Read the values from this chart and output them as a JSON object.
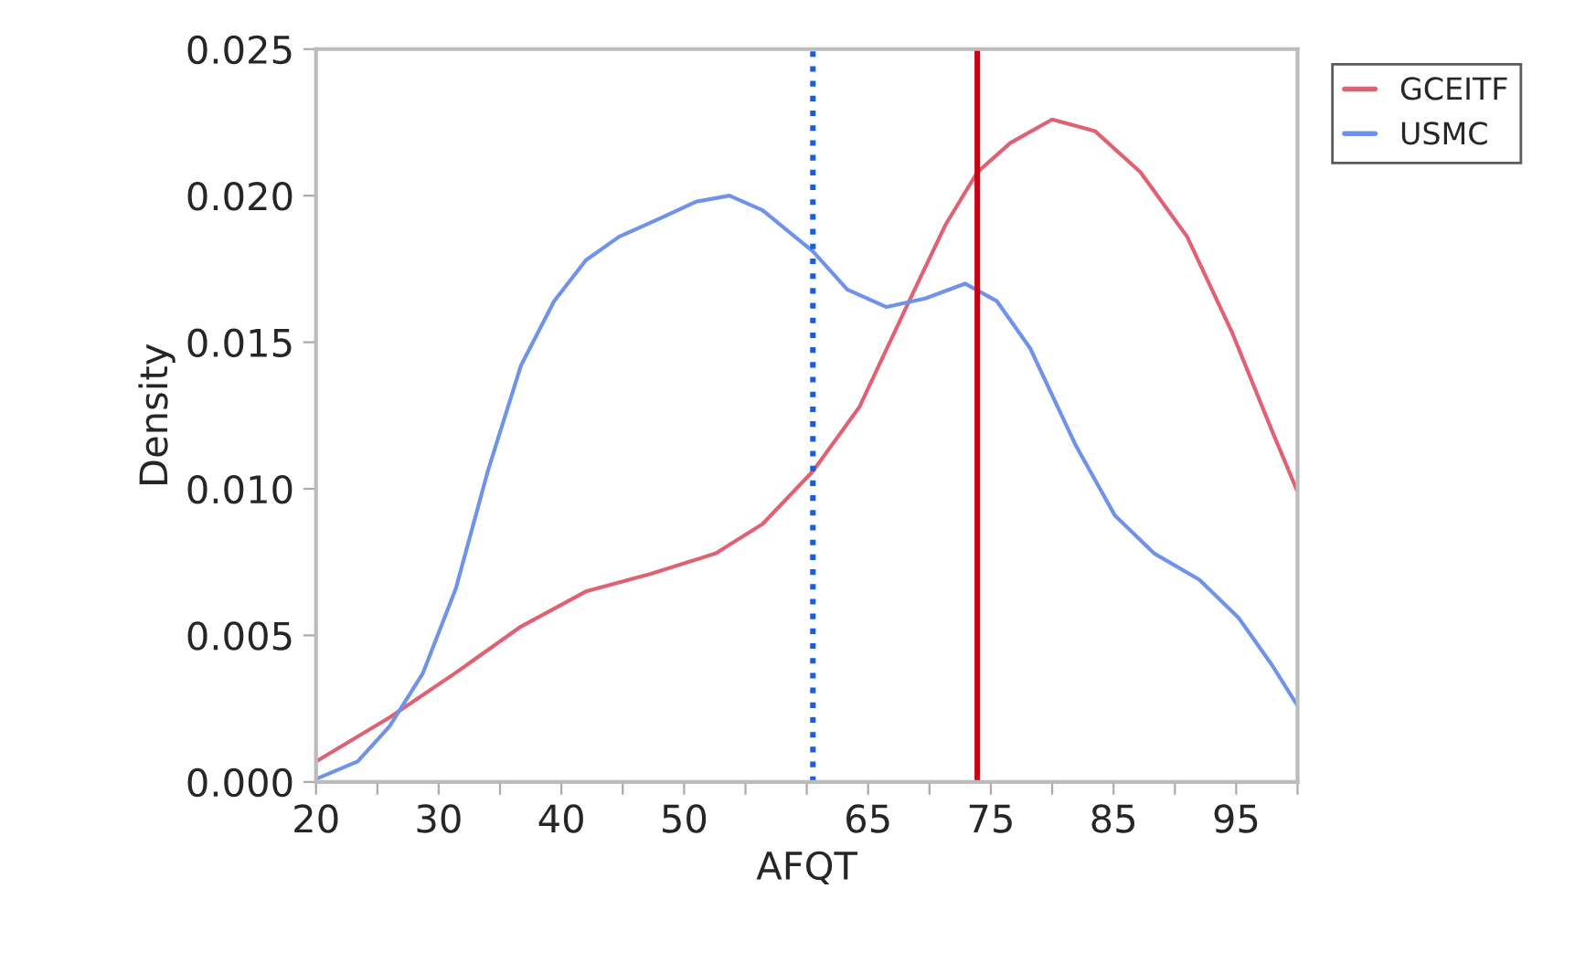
{
  "chart_data": {
    "type": "line",
    "xlabel": "AFQT",
    "ylabel": "Density",
    "series": [
      {
        "name": "GCEITF",
        "color": "#e06272",
        "x": [
          20,
          26,
          31.3,
          36.7,
          42,
          47.3,
          52.6,
          56.4,
          60.5,
          64.3,
          68,
          71.3,
          73.9,
          76.6,
          80,
          83.5,
          87.2,
          91,
          94.7,
          97.9,
          100
        ],
        "values": [
          0.0007,
          0.0022,
          0.0037,
          0.0053,
          0.0065,
          0.0071,
          0.0078,
          0.0088,
          0.0106,
          0.0128,
          0.0161,
          0.019,
          0.0208,
          0.0218,
          0.0226,
          0.0222,
          0.0208,
          0.0186,
          0.0153,
          0.012,
          0.0099
        ]
      },
      {
        "name": "USMC",
        "color": "#6f93e8",
        "x": [
          20,
          23.4,
          26,
          28.7,
          31.4,
          34,
          36.7,
          39.4,
          42,
          44.7,
          47.9,
          51,
          53.7,
          56.4,
          60.5,
          63.3,
          66.5,
          69.7,
          72.9,
          75.5,
          78.2,
          81.9,
          85.1,
          88.3,
          92,
          95.2,
          97.9,
          100
        ],
        "values": [
          0.0001,
          0.0007,
          0.0019,
          0.0037,
          0.0066,
          0.0106,
          0.0142,
          0.0164,
          0.0178,
          0.0186,
          0.0192,
          0.0198,
          0.02,
          0.0195,
          0.0181,
          0.0168,
          0.0162,
          0.0165,
          0.017,
          0.0164,
          0.0148,
          0.0115,
          0.0091,
          0.0078,
          0.0069,
          0.0056,
          0.004,
          0.0026
        ]
      }
    ],
    "ref_lines": [
      {
        "axis": "x",
        "value": 60.5,
        "color": "#1a5fd8",
        "line_style": "dotted"
      },
      {
        "axis": "x",
        "value": 73.9,
        "color": "#cc0010",
        "line_style": "solid"
      }
    ],
    "xlim": [
      20,
      100
    ],
    "xticks": [
      20,
      {
        "value": 25,
        "label": null
      },
      30,
      {
        "value": 35,
        "label": null
      },
      40,
      {
        "value": 45,
        "label": null
      },
      50,
      {
        "value": 55,
        "label": null
      },
      {
        "value": 60,
        "label": null
      },
      65,
      {
        "value": 70,
        "label": null
      },
      75,
      {
        "value": 80,
        "label": null
      },
      85,
      {
        "value": 90,
        "label": null
      },
      95,
      {
        "value": 100,
        "label": null
      }
    ],
    "ylim": [
      0,
      0.025
    ],
    "yticks": [
      {
        "value": 0,
        "label": "0.000"
      },
      {
        "value": 0.005,
        "label": "0.005"
      },
      {
        "value": 0.01,
        "label": "0.010"
      },
      {
        "value": 0.015,
        "label": "0.015"
      },
      {
        "value": 0.02,
        "label": "0.020"
      },
      {
        "value": 0.025,
        "label": "0.025"
      }
    ],
    "grid": false,
    "legend": "top right",
    "marker": "none",
    "line_style": "solid"
  }
}
